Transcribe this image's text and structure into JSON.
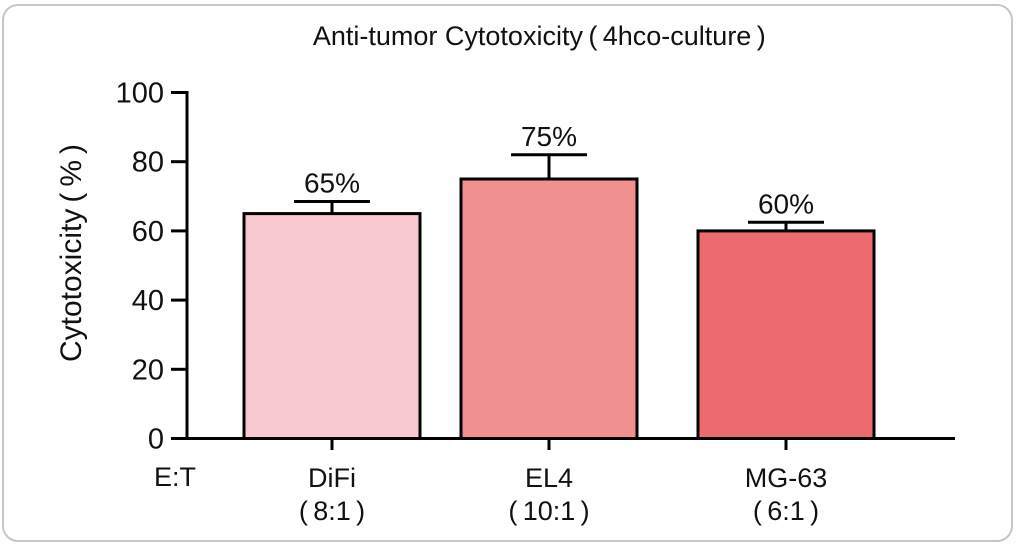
{
  "card": {
    "background": "#ffffff",
    "border_color": "#c7c7c7"
  },
  "chart_data": {
    "type": "bar",
    "title": "Anti-tumor Cytotoxicity（4hco-culture）",
    "ylabel": "Cytotoxicity（%）",
    "xlabel_prefix": "E:T",
    "ylim": [
      0,
      100
    ],
    "yticks": [
      0,
      20,
      40,
      60,
      80,
      100
    ],
    "categories": [
      "DiFi",
      "EL4",
      "MG-63"
    ],
    "ratios": [
      "（8:1）",
      "（10:1）",
      "（6:1）"
    ],
    "values": [
      65,
      75,
      60
    ],
    "value_labels": [
      "65%",
      "75%",
      "60%"
    ],
    "errors": [
      3.5,
      7,
      2.5
    ],
    "bar_colors": [
      "#F8C9CE",
      "#F0908F",
      "#EC6B6F"
    ],
    "bar_border_color": "#000000",
    "axis_color": "#000000",
    "grid": false,
    "legend": false
  }
}
